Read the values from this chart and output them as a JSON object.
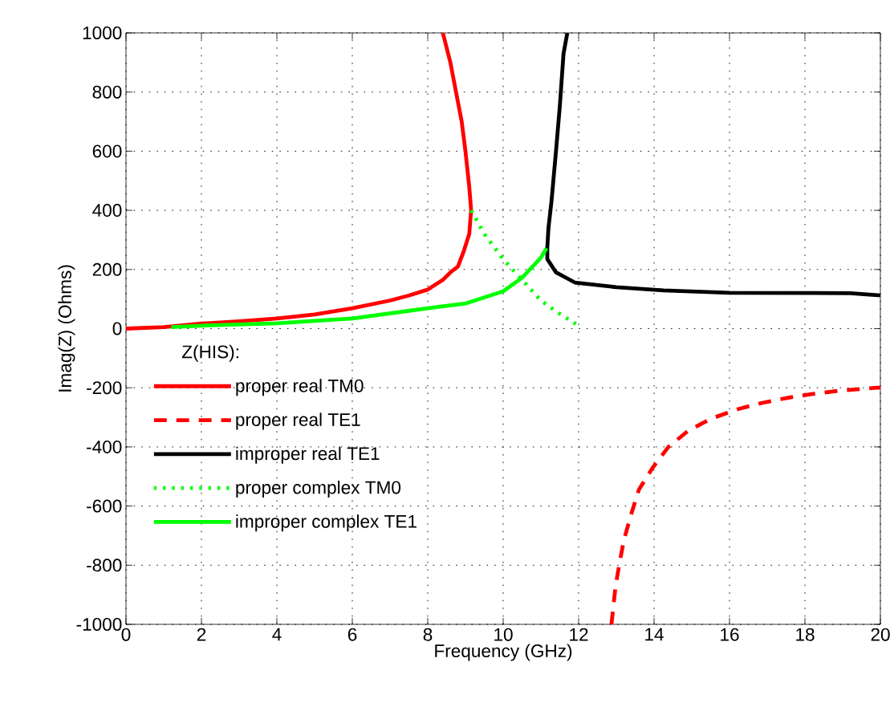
{
  "chart_data": {
    "type": "line",
    "xlabel": "Frequency (GHz)",
    "ylabel": "Imag(Z) (Ohms)",
    "legend_title": "Z(HIS):",
    "xlim": [
      0,
      20
    ],
    "ylim": [
      -1000,
      1000
    ],
    "xticks": [
      0,
      2,
      4,
      6,
      8,
      10,
      12,
      14,
      16,
      18,
      20
    ],
    "yticks": [
      -1000,
      -800,
      -600,
      -400,
      -200,
      0,
      200,
      400,
      600,
      800,
      1000
    ],
    "grid": true,
    "legend": "left",
    "marker": "none",
    "series": [
      {
        "name": "proper real TM0",
        "color": "#ff0000",
        "line_style": "solid",
        "x": [
          0,
          1,
          2,
          3,
          4,
          5,
          6,
          7,
          7.5,
          8,
          8.4,
          8.6,
          8.8,
          8.95,
          9.1,
          9.15,
          9.1,
          9.0,
          8.9,
          8.75,
          8.6,
          8.4
        ],
        "values": [
          0,
          5,
          17,
          25,
          34,
          48,
          69,
          95,
          112,
          132,
          165,
          190,
          210,
          260,
          320,
          400,
          480,
          600,
          700,
          800,
          900,
          1000
        ]
      },
      {
        "name": "proper real TE1",
        "color": "#ff0000",
        "line_style": "dashed",
        "x": [
          12.87,
          12.98,
          13.09,
          13.2,
          13.4,
          13.6,
          13.96,
          14.38,
          14.9,
          15.5,
          16.23,
          16.87,
          17.5,
          18.2,
          18.9,
          19.9,
          20
        ],
        "values": [
          -1000,
          -870,
          -789,
          -715,
          -625,
          -544,
          -471,
          -400,
          -346,
          -305,
          -272,
          -251,
          -235,
          -221,
          -210,
          -200,
          -200
        ]
      },
      {
        "name": "improper real TE1",
        "color": "#000000",
        "line_style": "solid",
        "x": [
          11.7,
          11.6,
          11.5,
          11.4,
          11.28,
          11.2,
          11.17,
          11.17,
          11.4,
          11.9,
          13,
          14.25,
          16,
          19.2,
          20
        ],
        "values": [
          1000,
          930,
          750,
          600,
          430,
          340,
          275,
          235,
          190,
          156,
          140,
          129,
          121,
          120,
          112
        ]
      },
      {
        "name": "proper complex TM0",
        "color": "#00ff00",
        "line_style": "dotted",
        "x": [
          9.15,
          9.5,
          10,
          10.5,
          11,
          11.5,
          12
        ],
        "values": [
          400,
          320,
          235,
          165,
          95,
          50,
          10
        ]
      },
      {
        "name": "improper complex TE1",
        "color": "#00ff00",
        "line_style": "solid",
        "x": [
          1.2,
          2,
          4,
          6,
          8,
          9,
          10,
          10.5,
          11,
          11.15
        ],
        "values": [
          5,
          10,
          18,
          34,
          69,
          85,
          126,
          172,
          240,
          272
        ]
      }
    ]
  }
}
